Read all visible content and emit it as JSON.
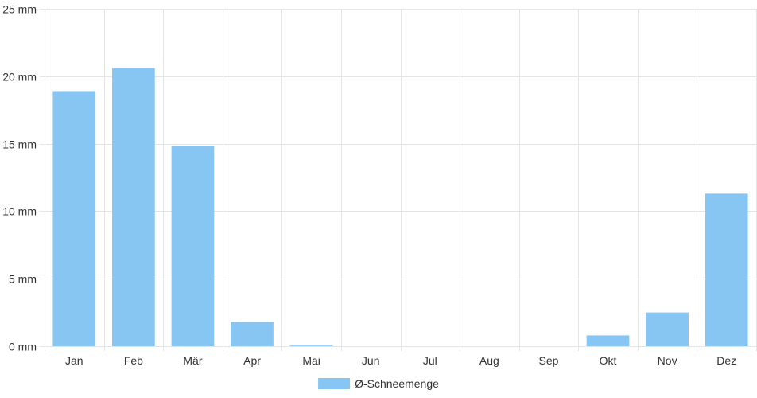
{
  "chart_data": {
    "type": "bar",
    "categories": [
      "Jan",
      "Feb",
      "Mär",
      "Apr",
      "Mai",
      "Jun",
      "Jul",
      "Aug",
      "Sep",
      "Okt",
      "Nov",
      "Dez"
    ],
    "series": [
      {
        "name": "Ø-Schneemenge",
        "values": [
          18.9,
          20.6,
          14.8,
          1.8,
          0.05,
          0,
          0,
          0,
          0,
          0.8,
          2.5,
          11.3
        ],
        "color": "#87c6f2"
      }
    ],
    "y_ticks": [
      "0 mm",
      "5 mm",
      "10 mm",
      "15 mm",
      "20 mm",
      "25 mm"
    ],
    "ylim": [
      0,
      25
    ],
    "ystep": 5,
    "grid": true,
    "gridColor": "#e5e5e5",
    "legend_position": "bottom"
  }
}
